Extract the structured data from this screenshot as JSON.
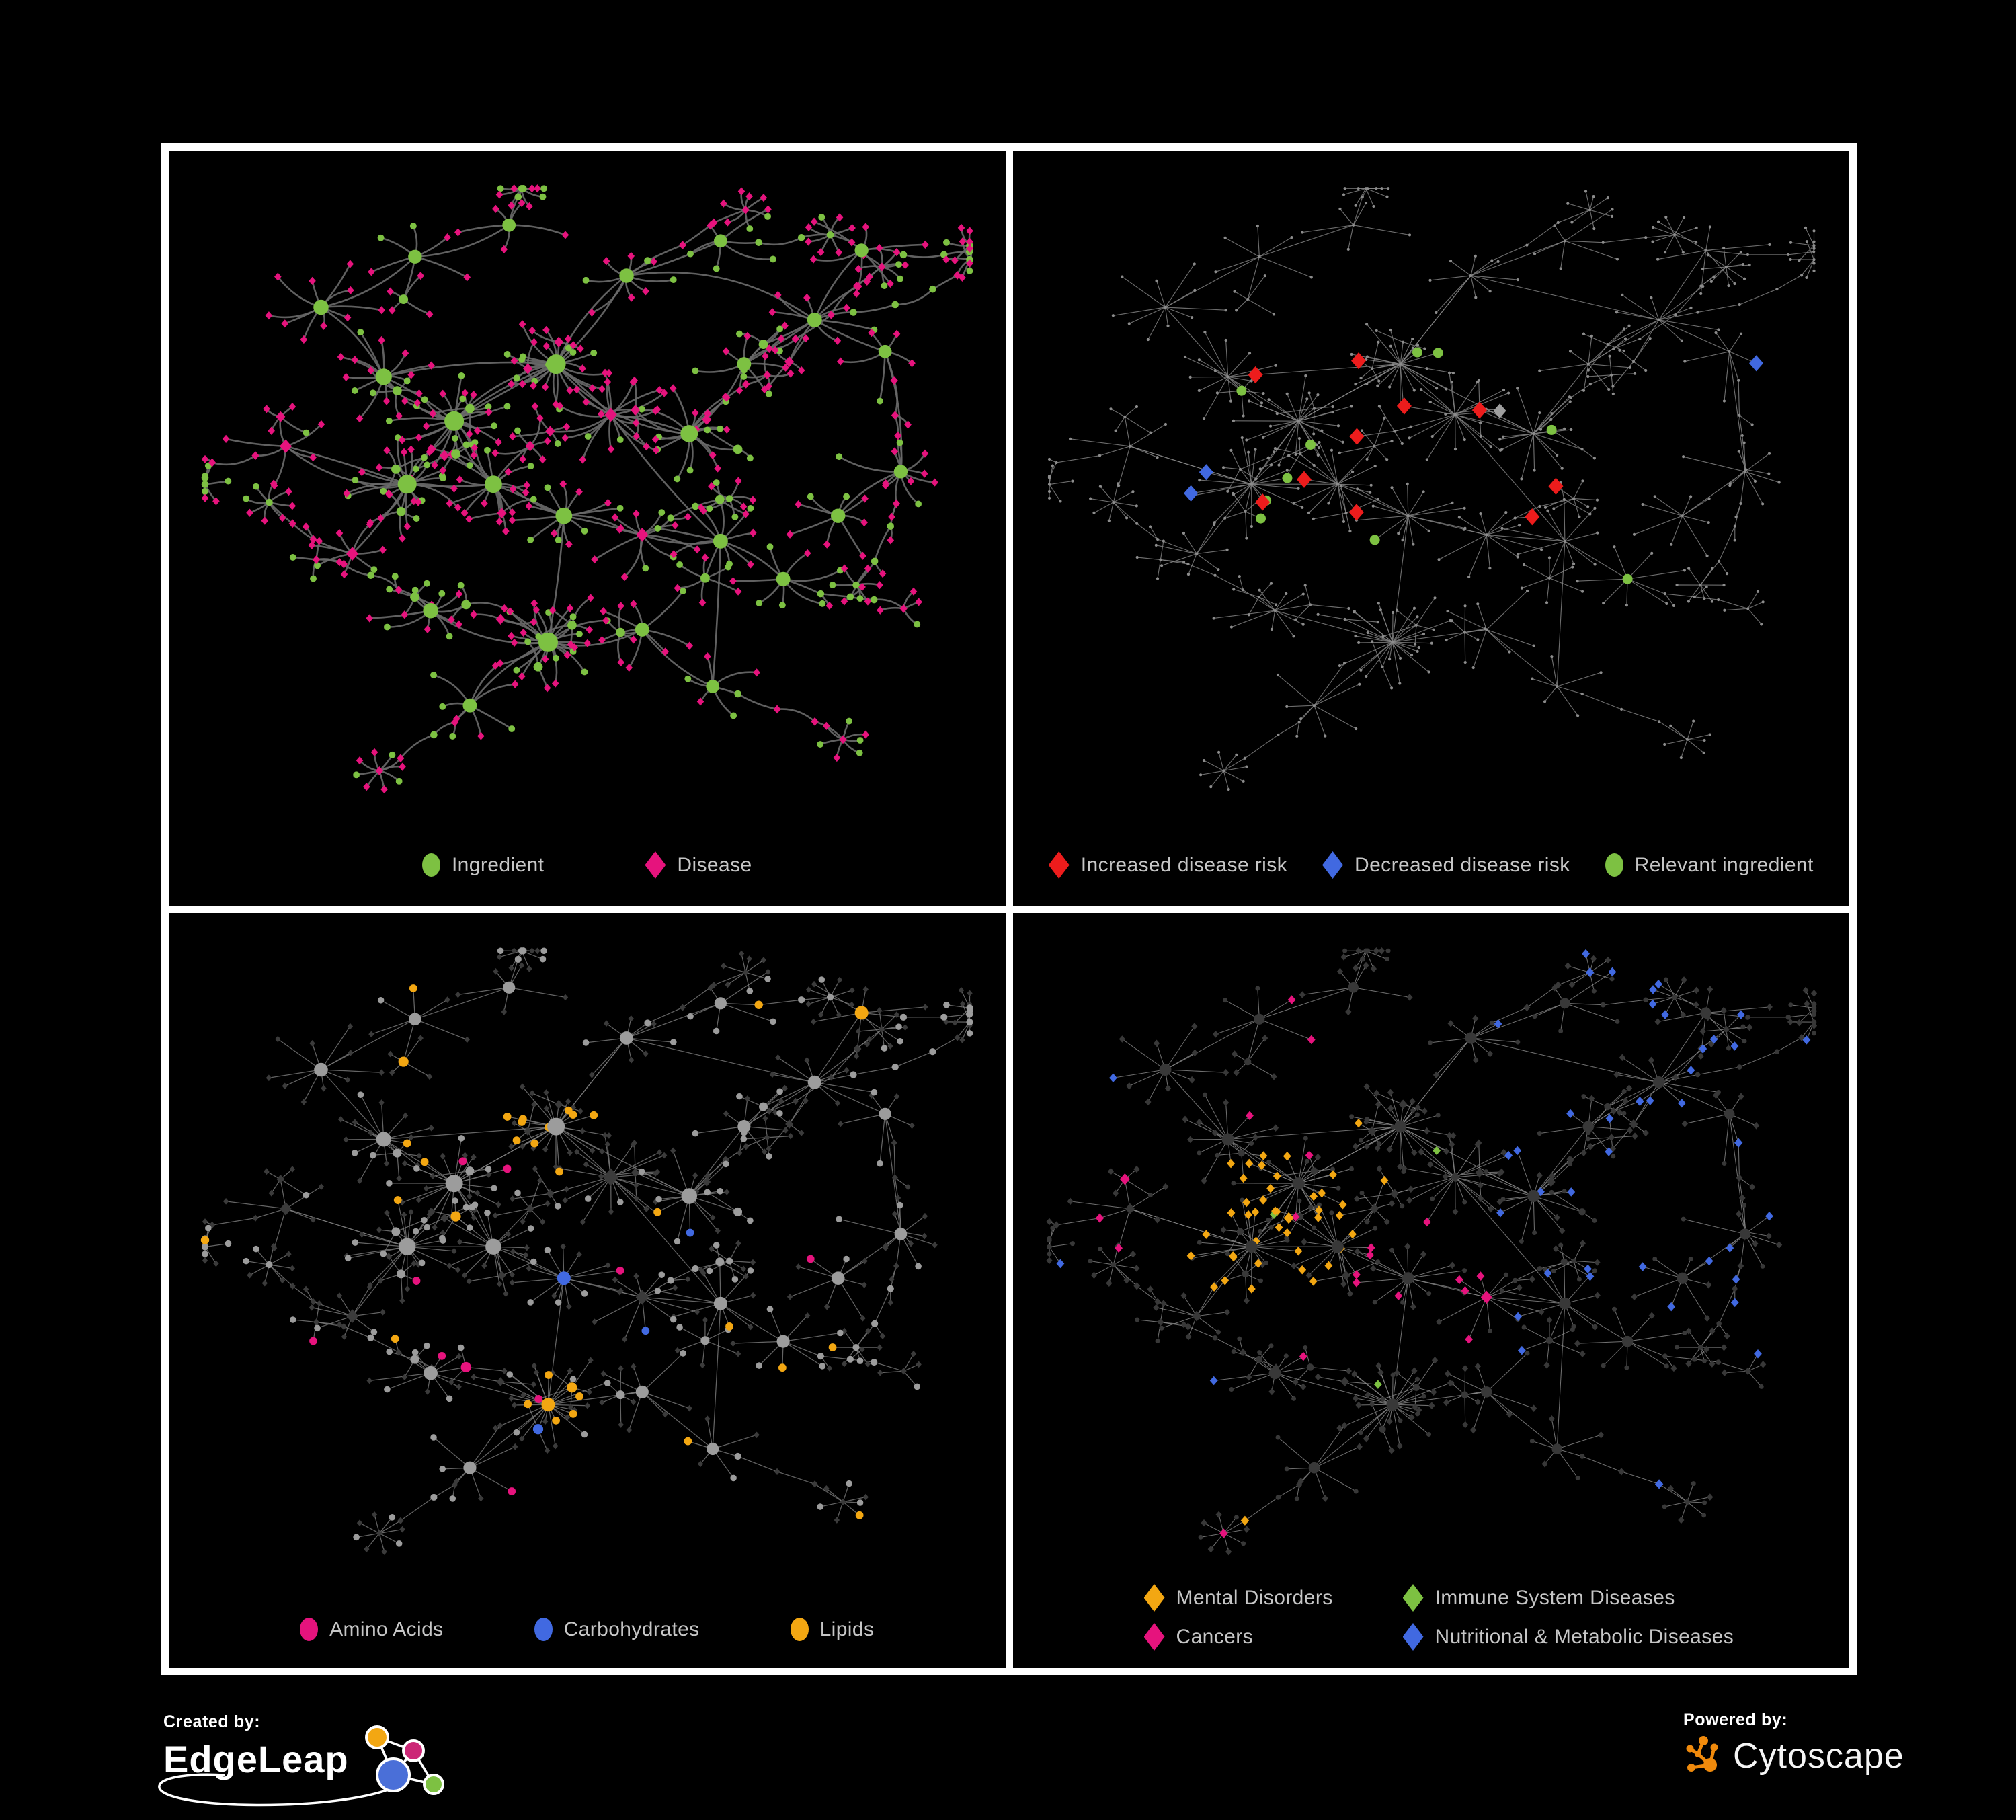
{
  "figure": {
    "background": "#000000",
    "frame_color": "#ffffff",
    "panel_background": "#000000",
    "legend_text_color": "#c6c6c6"
  },
  "panels": [
    {
      "id": "ingredient-disease",
      "legend": [
        {
          "label": "Ingredient",
          "shape": "circle",
          "color": "#7dc142"
        },
        {
          "label": "Disease",
          "shape": "diamond",
          "color": "#e6137d"
        }
      ],
      "style": {
        "mode": "type",
        "edge": "#6a6a6a",
        "edge_width": 2.6,
        "curved": true,
        "ingredient": "#7dc142",
        "disease": "#e6137d"
      }
    },
    {
      "id": "disease-risk",
      "legend": [
        {
          "label": "Increased disease risk",
          "shape": "diamond",
          "color": "#ed1c1c"
        },
        {
          "label": "Decreased disease risk",
          "shape": "diamond",
          "color": "#4169e1"
        },
        {
          "label": "Relevant ingredient",
          "shape": "circle",
          "color": "#7dc142"
        }
      ],
      "style": {
        "mode": "risk",
        "edge": "#878787",
        "edge_width": 1.15,
        "curved": false,
        "base": "#8c8c8c",
        "increased": "#ed1c1c",
        "decreased": "#4169e1",
        "neutral": "#9e9e9e",
        "relevant": "#7dc142"
      }
    },
    {
      "id": "nutrient-classes",
      "legend": [
        {
          "label": "Amino Acids",
          "shape": "circle",
          "color": "#e6137d"
        },
        {
          "label": "Carbohydrates",
          "shape": "circle",
          "color": "#4169e1"
        },
        {
          "label": "Lipids",
          "shape": "circle",
          "color": "#f3a712"
        }
      ],
      "style": {
        "mode": "nutrient",
        "edge": "#7d7d7d",
        "edge_width": 1.25,
        "curved": false,
        "ingredient_base": "#9c9c9c",
        "disease_base": "#3b3b3b",
        "amino": "#e6137d",
        "carb": "#4169e1",
        "lipid": "#f3a712"
      }
    },
    {
      "id": "disease-categories",
      "legend": [
        {
          "label": "Mental Disorders",
          "shape": "diamond",
          "color": "#f3a712"
        },
        {
          "label": "Immune System Diseases",
          "shape": "diamond",
          "color": "#7dc142"
        },
        {
          "label": "Cancers",
          "shape": "diamond",
          "color": "#e6137d"
        },
        {
          "label": "Nutritional & Metabolic Diseases",
          "shape": "diamond",
          "color": "#4169e1"
        }
      ],
      "style": {
        "mode": "category",
        "edge": "#8a8a8a",
        "edge_width": 1.05,
        "curved": false,
        "base": "#383838",
        "mental": "#f3a712",
        "immune": "#7dc142",
        "cancer": "#e6137d",
        "nutritional": "#4169e1"
      }
    }
  ],
  "footer": {
    "created_by_label": "Created by:",
    "edgeleap_brand": "EdgeLeap",
    "powered_by_label": "Powered by:",
    "cytoscape_brand": "Cytoscape",
    "edgeleap_logo_colors": {
      "orange": "#f3a712",
      "magenta": "#cc2877",
      "blue": "#4a6fd8",
      "green": "#7dc142"
    },
    "cytoscape_logo_color": "#f08a0c"
  },
  "network": {
    "seed": 1337,
    "hubs": [
      [
        0.16,
        0.2,
        10
      ],
      [
        0.28,
        0.12,
        6
      ],
      [
        0.4,
        0.07,
        5
      ],
      [
        0.24,
        0.31,
        13
      ],
      [
        0.33,
        0.38,
        22
      ],
      [
        0.27,
        0.48,
        20
      ],
      [
        0.38,
        0.48,
        16
      ],
      [
        0.46,
        0.29,
        24
      ],
      [
        0.53,
        0.37,
        18
      ],
      [
        0.47,
        0.53,
        14
      ],
      [
        0.57,
        0.56,
        10
      ],
      [
        0.63,
        0.4,
        16
      ],
      [
        0.7,
        0.29,
        7
      ],
      [
        0.79,
        0.22,
        9
      ],
      [
        0.88,
        0.27,
        5
      ],
      [
        0.67,
        0.57,
        9
      ],
      [
        0.75,
        0.63,
        7
      ],
      [
        0.45,
        0.73,
        26
      ],
      [
        0.3,
        0.68,
        10
      ],
      [
        0.2,
        0.59,
        7
      ],
      [
        0.57,
        0.71,
        7
      ],
      [
        0.66,
        0.8,
        5
      ],
      [
        0.35,
        0.83,
        7
      ],
      [
        0.115,
        0.42,
        5
      ],
      [
        0.55,
        0.15,
        8
      ],
      [
        0.67,
        0.095,
        5
      ],
      [
        0.85,
        0.11,
        6
      ],
      [
        0.9,
        0.46,
        6
      ],
      [
        0.82,
        0.53,
        8
      ]
    ],
    "chains": [
      [
        13,
        -15,
        5
      ],
      [
        26,
        20,
        4
      ],
      [
        14,
        60,
        4
      ],
      [
        27,
        100,
        4
      ],
      [
        24,
        -40,
        4
      ],
      [
        25,
        -10,
        3
      ],
      [
        21,
        40,
        4
      ],
      [
        23,
        170,
        4
      ],
      [
        19,
        200,
        3
      ],
      [
        22,
        120,
        4
      ],
      [
        16,
        10,
        4
      ],
      [
        2,
        -60,
        3
      ],
      [
        18,
        230,
        4
      ],
      [
        10,
        330,
        3
      ],
      [
        12,
        -30,
        5
      ],
      [
        11,
        -70,
        4
      ]
    ],
    "extra_links": 18
  }
}
